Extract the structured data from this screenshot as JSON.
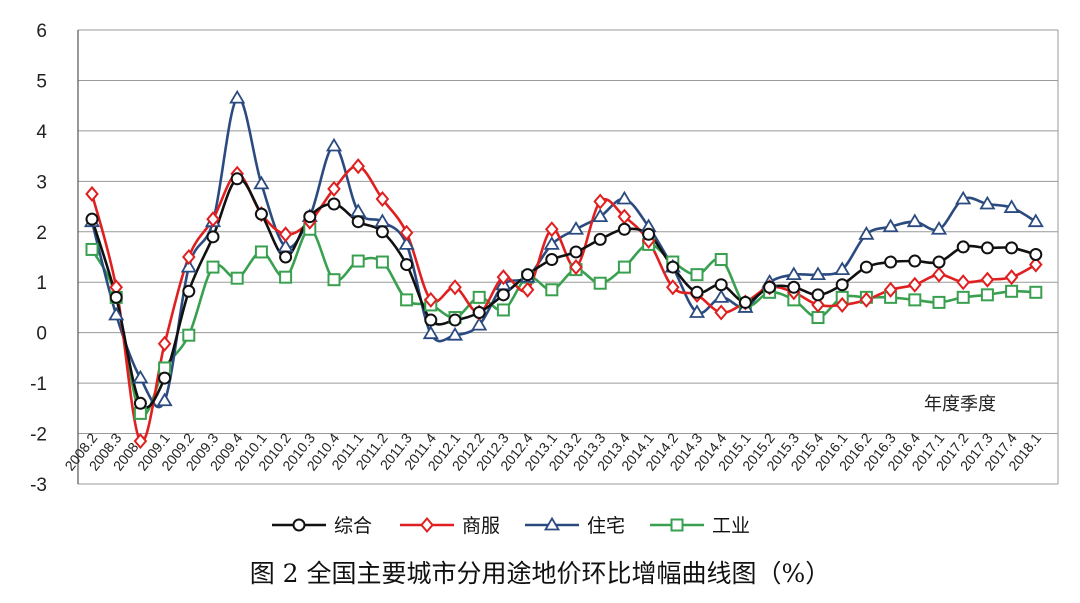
{
  "chart_data": {
    "type": "line",
    "title": "图 2 全国主要城市分用途地价环比增幅曲线图（%）",
    "xlabel": "年度季度",
    "ylabel": "",
    "ylim": [
      -3,
      6
    ],
    "yticks": [
      "6",
      "5",
      "4",
      "3",
      "2",
      "1",
      "0",
      "-1",
      "-2",
      "-3"
    ],
    "grid": true,
    "legend_position": "bottom",
    "x_tick_labels": [
      "2008.2",
      "2008.3",
      "2008.4",
      "2009.1",
      "2009.2",
      "2009.3",
      "2009.4",
      "2010.1",
      "2010.2",
      "2010.3",
      "2010.4",
      "2011.1",
      "2011.2",
      "2011.3",
      "2011.4",
      "2012.1",
      "2012.2",
      "2012.3",
      "2012.4",
      "2013.1",
      "2013.2",
      "2013.3",
      "2013.4",
      "2014.1",
      "2014.2",
      "2014.3",
      "2014.4",
      "2015.1",
      "2015.2",
      "2015.3",
      "2015.4",
      "2016.1",
      "2016.2",
      "2016.3",
      "2016.4",
      "2017.1",
      "2017.2",
      "2017.3",
      "2017.4",
      "2018.1"
    ],
    "series": [
      {
        "name": "综合",
        "color": "#111111",
        "marker": "circle",
        "values": [
          2.25,
          0.7,
          -1.4,
          -0.9,
          0.82,
          1.9,
          3.05,
          2.35,
          1.5,
          2.3,
          2.55,
          2.2,
          2.0,
          1.35,
          0.25,
          0.25,
          0.4,
          0.75,
          1.15,
          1.45,
          1.6,
          1.85,
          2.05,
          1.95,
          1.3,
          0.8,
          0.95,
          0.6,
          0.9,
          0.9,
          0.75,
          0.95,
          1.3,
          1.4,
          1.42,
          1.4,
          1.7,
          1.68,
          1.68,
          1.55
        ]
      },
      {
        "name": "商服",
        "color": "#e02020",
        "marker": "diamond",
        "values": [
          2.75,
          0.9,
          -2.15,
          -0.22,
          1.5,
          2.25,
          3.15,
          2.35,
          1.95,
          2.2,
          2.85,
          3.3,
          2.65,
          1.98,
          0.65,
          0.9,
          0.4,
          1.1,
          0.85,
          2.05,
          1.3,
          2.6,
          2.3,
          1.82,
          0.9,
          0.75,
          0.4,
          0.6,
          0.9,
          0.8,
          0.55,
          0.55,
          0.65,
          0.85,
          0.95,
          1.15,
          1.0,
          1.05,
          1.1,
          1.35
        ]
      },
      {
        "name": "住宅",
        "color": "#2b4b80",
        "marker": "triangle",
        "values": [
          2.2,
          0.35,
          -0.9,
          -1.35,
          1.3,
          2.2,
          4.65,
          2.95,
          1.7,
          2.3,
          3.7,
          2.4,
          2.2,
          1.75,
          -0.02,
          -0.05,
          0.15,
          0.95,
          1.1,
          1.75,
          2.05,
          2.3,
          2.65,
          2.1,
          1.3,
          0.4,
          0.7,
          0.5,
          1.0,
          1.15,
          1.15,
          1.25,
          1.95,
          2.1,
          2.2,
          2.05,
          2.65,
          2.55,
          2.48,
          2.2
        ]
      },
      {
        "name": "工业",
        "color": "#39a050",
        "marker": "square",
        "values": [
          1.65,
          0.7,
          -1.6,
          -0.7,
          -0.05,
          1.3,
          1.08,
          1.6,
          1.1,
          2.05,
          1.05,
          1.42,
          1.4,
          0.65,
          0.55,
          0.3,
          0.7,
          0.45,
          1.1,
          0.85,
          1.25,
          0.98,
          1.3,
          1.75,
          1.4,
          1.15,
          1.45,
          0.55,
          0.8,
          0.65,
          0.3,
          0.7,
          0.7,
          0.7,
          0.65,
          0.6,
          0.7,
          0.75,
          0.82,
          0.8
        ]
      }
    ]
  }
}
